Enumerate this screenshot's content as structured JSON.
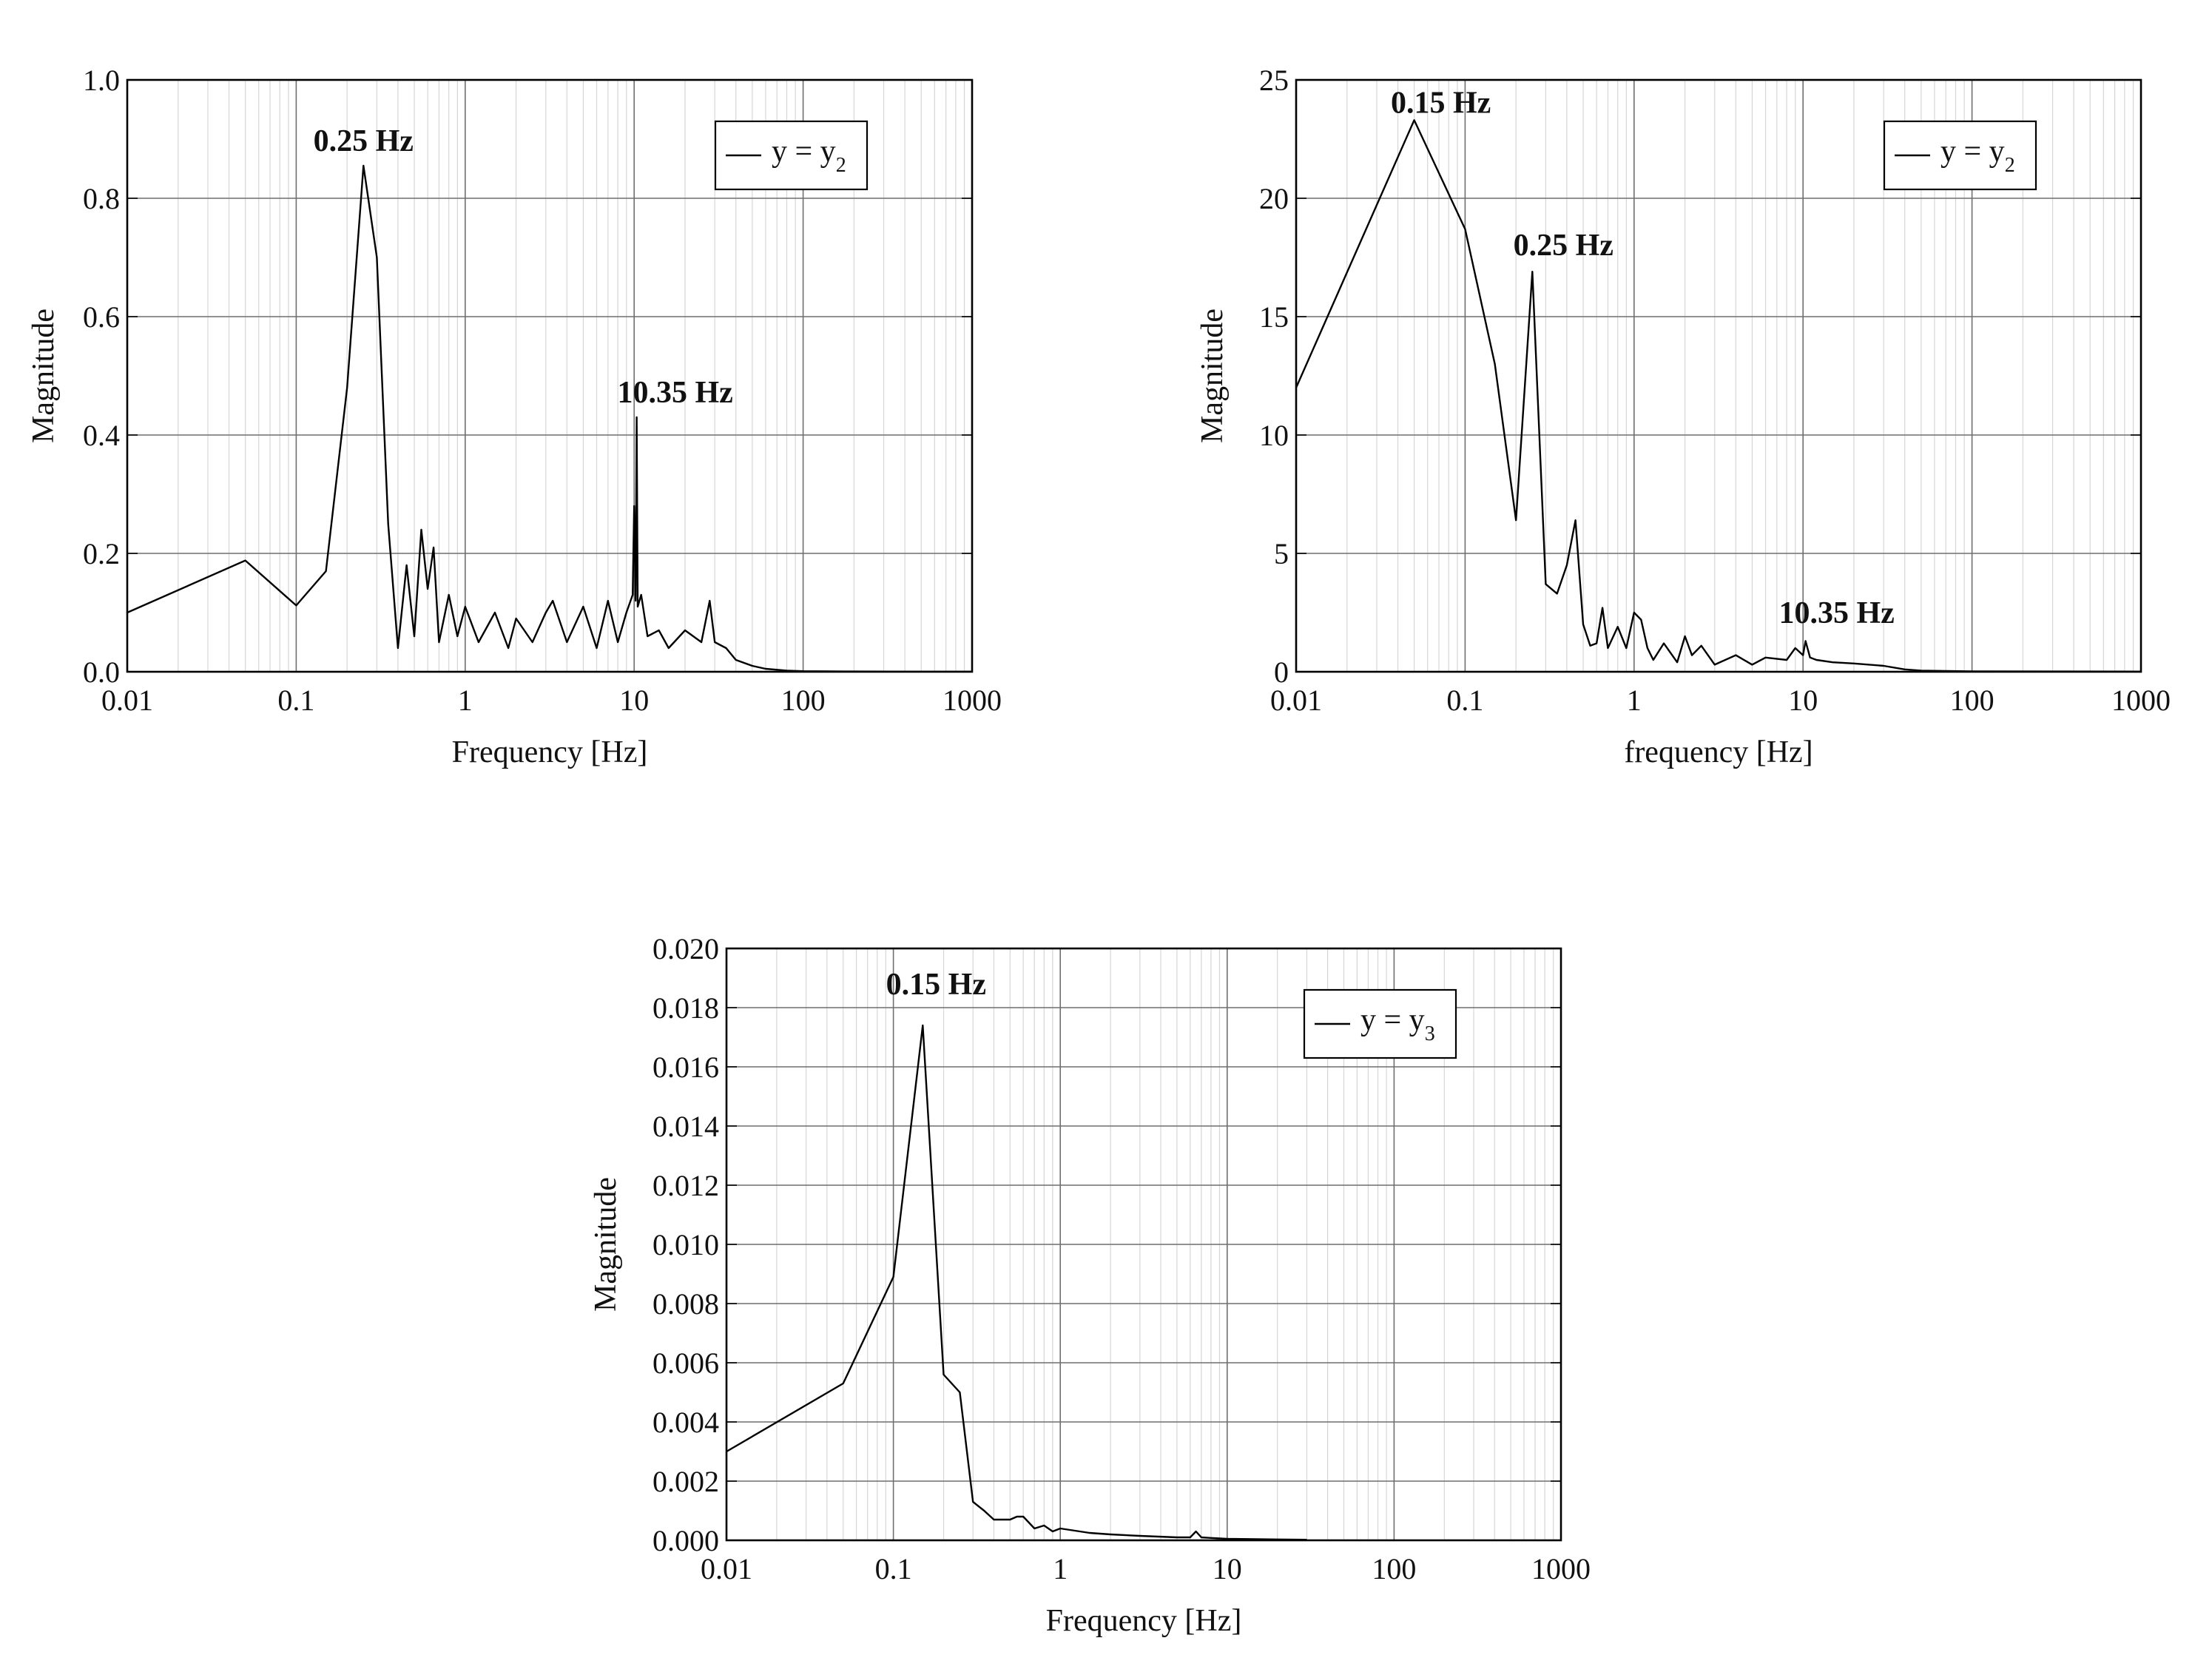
{
  "chart_data": [
    {
      "type": "line",
      "xscale": "log",
      "xlabel": "Frequency [Hz]",
      "ylabel": "Magnitude",
      "xlim": [
        0.01,
        1000
      ],
      "ylim": [
        0,
        1.0
      ],
      "xticks": [
        "0.01",
        "0.1",
        "1",
        "10",
        "100",
        "1000"
      ],
      "yticks": [
        "0.0",
        "0.2",
        "0.4",
        "0.6",
        "0.8",
        "1.0"
      ],
      "legend": {
        "base": "y = y",
        "sub": "2",
        "position": "top-right"
      },
      "annotations": [
        {
          "text": "0.25 Hz",
          "x": 0.25,
          "y": 0.855
        },
        {
          "text": "10.35 Hz",
          "x": 10.35,
          "y": 0.43
        }
      ],
      "series": [
        {
          "name": "y = y2",
          "x": [
            0.01,
            0.05,
            0.1,
            0.15,
            0.2,
            0.25,
            0.3,
            0.35,
            0.4,
            0.45,
            0.5,
            0.55,
            0.6,
            0.65,
            0.7,
            0.8,
            0.9,
            1.0,
            1.2,
            1.5,
            1.8,
            2.0,
            2.5,
            3.0,
            3.3,
            4.0,
            5.0,
            6.0,
            7.0,
            8.0,
            9.0,
            9.8,
            10.0,
            10.2,
            10.35,
            10.5,
            11.0,
            12.0,
            14.0,
            16.0,
            20.0,
            25.0,
            28.0,
            30.0,
            35.0,
            40.0,
            50.0,
            60.0,
            80.0,
            100.0,
            200.0,
            500.0,
            1000.0
          ],
          "y": [
            0.1,
            0.188,
            0.112,
            0.17,
            0.48,
            0.855,
            0.7,
            0.25,
            0.04,
            0.18,
            0.06,
            0.24,
            0.14,
            0.21,
            0.05,
            0.13,
            0.06,
            0.11,
            0.05,
            0.1,
            0.04,
            0.09,
            0.05,
            0.1,
            0.12,
            0.05,
            0.11,
            0.04,
            0.12,
            0.05,
            0.1,
            0.13,
            0.28,
            0.12,
            0.43,
            0.11,
            0.13,
            0.06,
            0.07,
            0.04,
            0.07,
            0.05,
            0.12,
            0.05,
            0.04,
            0.02,
            0.01,
            0.005,
            0.002,
            0.001,
            0.0005,
            0.0003,
            0.0002
          ]
        }
      ]
    },
    {
      "type": "line",
      "xscale": "log",
      "xlabel": "frequency [Hz]",
      "ylabel": "Magnitude",
      "xlim": [
        0.01,
        1000
      ],
      "ylim": [
        0,
        25
      ],
      "xticks": [
        "0.01",
        "0.1",
        "1",
        "10",
        "100",
        "1000"
      ],
      "yticks": [
        "0",
        "5",
        "10",
        "15",
        "20",
        "25"
      ],
      "legend": {
        "base": "y = y",
        "sub": "2",
        "position": "top-right"
      },
      "annotations": [
        {
          "text": "0.15 Hz",
          "x": 0.05,
          "y": 23.3
        },
        {
          "text": "0.25 Hz",
          "x": 0.25,
          "y": 16.9
        },
        {
          "text": "10.35 Hz",
          "x": 10.35,
          "y": 1.5
        }
      ],
      "series": [
        {
          "name": "y = y2",
          "x": [
            0.01,
            0.05,
            0.1,
            0.15,
            0.2,
            0.25,
            0.3,
            0.35,
            0.4,
            0.45,
            0.5,
            0.55,
            0.6,
            0.65,
            0.7,
            0.8,
            0.9,
            1.0,
            1.1,
            1.2,
            1.3,
            1.5,
            1.8,
            2.0,
            2.2,
            2.5,
            3.0,
            4.0,
            5.0,
            6.0,
            8.0,
            9.0,
            10.0,
            10.35,
            11.0,
            12.0,
            15.0,
            20.0,
            30.0,
            40.0,
            50.0,
            100.0,
            1000.0
          ],
          "y": [
            12.0,
            23.3,
            18.7,
            13.0,
            6.4,
            16.9,
            3.7,
            3.3,
            4.5,
            6.4,
            2.0,
            1.1,
            1.2,
            2.7,
            1.0,
            1.9,
            1.0,
            2.5,
            2.2,
            1.0,
            0.5,
            1.2,
            0.4,
            1.5,
            0.7,
            1.1,
            0.3,
            0.7,
            0.3,
            0.6,
            0.5,
            1.0,
            0.7,
            1.3,
            0.6,
            0.5,
            0.4,
            0.35,
            0.25,
            0.1,
            0.05,
            0.02,
            0.01
          ]
        }
      ]
    },
    {
      "type": "line",
      "xscale": "log",
      "xlabel": "Frequency [Hz]",
      "ylabel": "Magnitude",
      "xlim": [
        0.01,
        1000
      ],
      "ylim": [
        0,
        0.02
      ],
      "xticks": [
        "0.01",
        "0.1",
        "1",
        "10",
        "100",
        "1000"
      ],
      "yticks": [
        "0.000",
        "0.002",
        "0.004",
        "0.006",
        "0.008",
        "0.010",
        "0.012",
        "0.014",
        "0.016",
        "0.018",
        "0.020"
      ],
      "legend": {
        "base": "y = y",
        "sub": "3",
        "position": "top-right"
      },
      "annotations": [
        {
          "text": "0.15 Hz",
          "x": 0.15,
          "y": 0.0174
        }
      ],
      "series": [
        {
          "name": "y = y3",
          "x": [
            0.01,
            0.05,
            0.1,
            0.15,
            0.2,
            0.25,
            0.3,
            0.35,
            0.4,
            0.5,
            0.55,
            0.6,
            0.7,
            0.8,
            0.9,
            1.0,
            1.5,
            2.0,
            3.0,
            5.0,
            6.0,
            6.5,
            7.0,
            8.0,
            10.0,
            20.0,
            30.0
          ],
          "y": [
            0.003,
            0.0053,
            0.0089,
            0.0174,
            0.0056,
            0.005,
            0.0013,
            0.001,
            0.0007,
            0.0007,
            0.0008,
            0.0008,
            0.0004,
            0.0005,
            0.0003,
            0.0004,
            0.00025,
            0.0002,
            0.00015,
            0.0001,
            0.0001,
            0.0003,
            0.0001,
            8e-05,
            5e-05,
            3e-05,
            2e-05
          ]
        }
      ]
    }
  ]
}
